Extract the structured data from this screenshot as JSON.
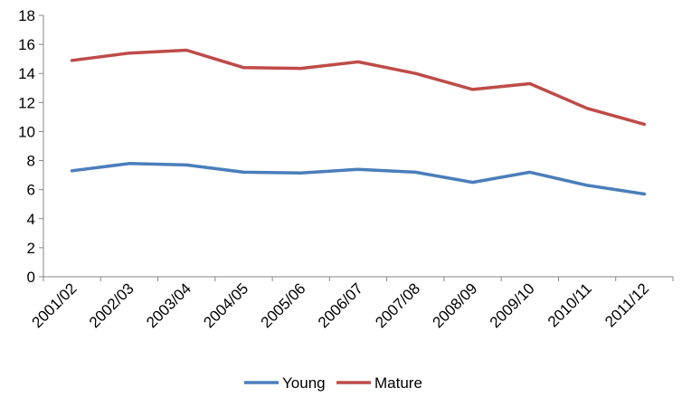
{
  "chart_data": {
    "type": "line",
    "title": "",
    "xlabel": "",
    "ylabel": "",
    "categories": [
      "2001/02",
      "2002/03",
      "2003/04",
      "2004/05",
      "2005/06",
      "2006/07",
      "2007/08",
      "2008/09",
      "2009/10",
      "2010/11",
      "2011/12"
    ],
    "yticks": [
      "0",
      "2",
      "4",
      "6",
      "8",
      "10",
      "12",
      "14",
      "16",
      "18"
    ],
    "ylim": [
      0,
      18
    ],
    "grid": false,
    "legend_position": "bottom",
    "series": [
      {
        "name": "Young",
        "color": "#4A7EBB",
        "values": [
          7.3,
          7.8,
          7.7,
          7.2,
          7.15,
          7.4,
          7.2,
          6.5,
          7.2,
          6.3,
          5.7
        ]
      },
      {
        "name": "Mature",
        "color": "#BE4B48",
        "values": [
          14.9,
          15.4,
          15.6,
          14.4,
          14.35,
          14.8,
          14.0,
          12.9,
          13.3,
          11.6,
          10.5
        ]
      }
    ]
  }
}
